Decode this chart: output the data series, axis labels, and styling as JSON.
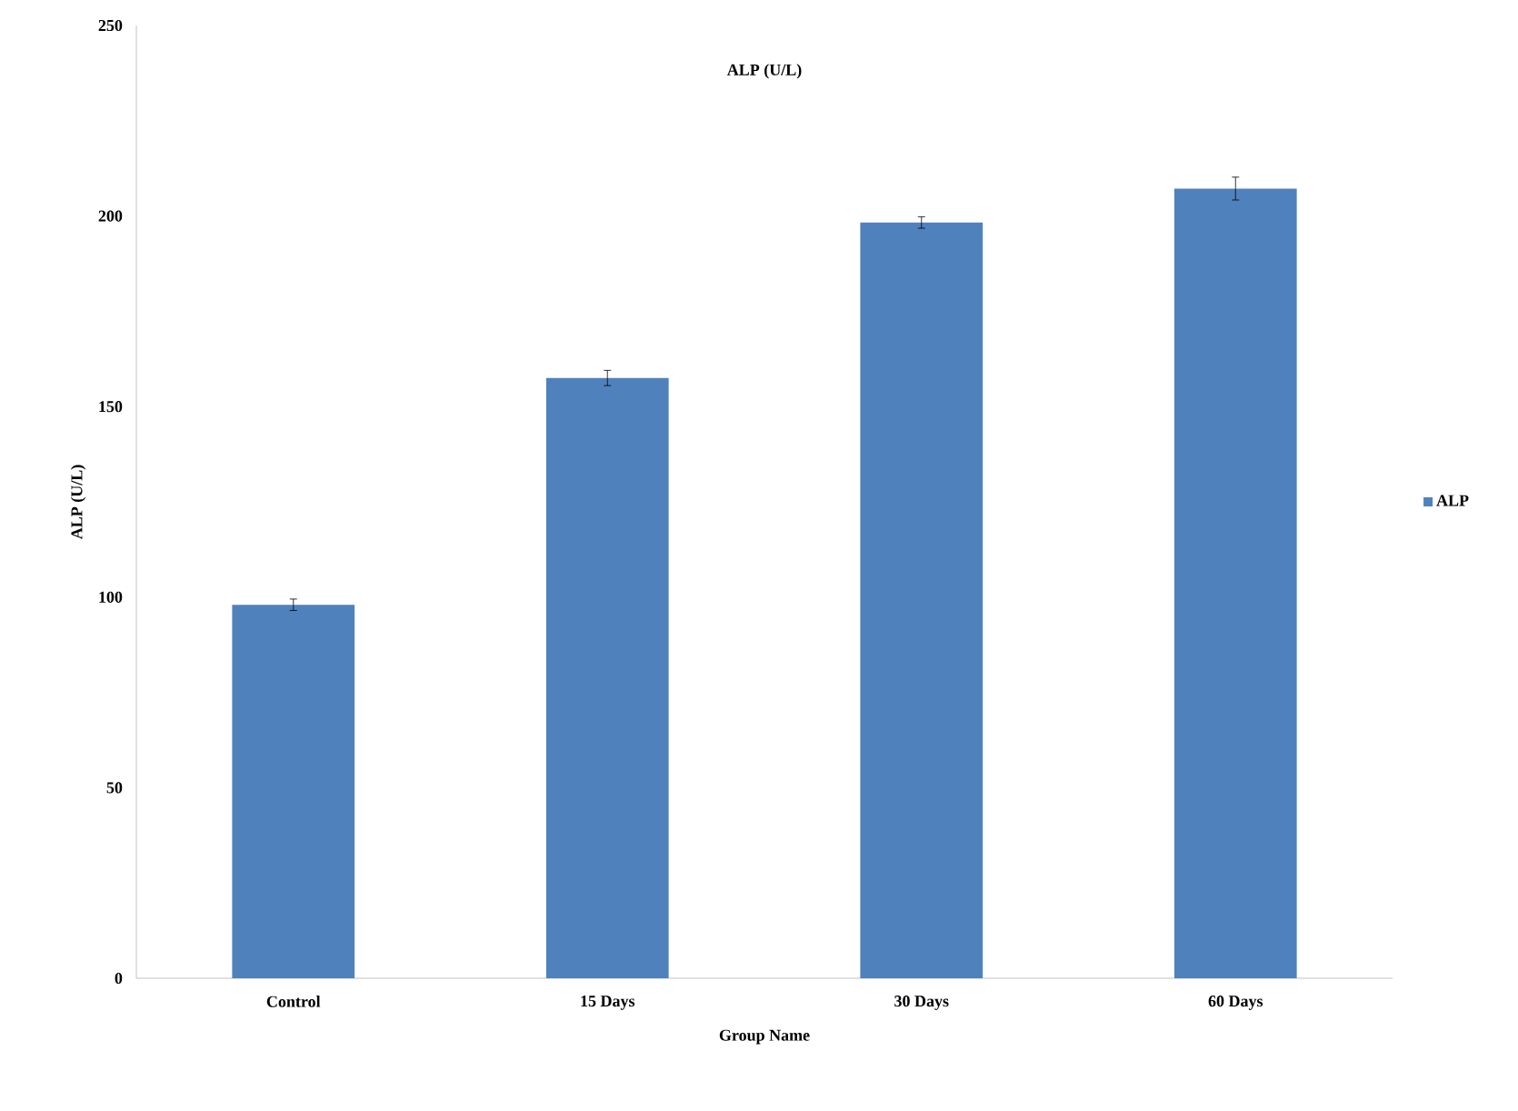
{
  "chart_data": {
    "type": "bar",
    "title": "ALP (U/L)",
    "xlabel": "Group Name",
    "ylabel": "ALP (U/L)",
    "categories": [
      "Control",
      "15 Days",
      "30 Days",
      "60 Days"
    ],
    "series": [
      {
        "name": "ALP",
        "color": "#4f81bd",
        "values": [
          98,
          157.5,
          198.3,
          207.2
        ],
        "errors": [
          1.5,
          2,
          1.5,
          3
        ]
      }
    ],
    "ylim": [
      0,
      250
    ],
    "yticks": [
      0,
      50,
      100,
      150,
      200,
      250
    ],
    "grid": false,
    "legend": "right"
  }
}
